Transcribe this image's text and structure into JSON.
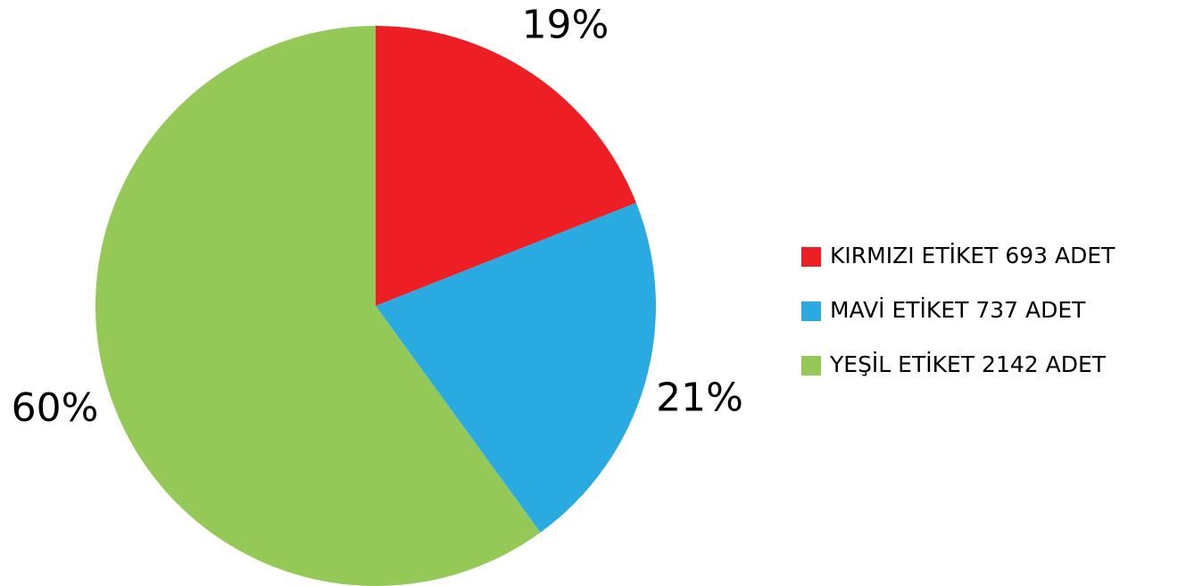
{
  "chart_data": {
    "type": "pie",
    "categories": [
      "KIRMIZI ETİKET 693 ADET",
      "MAVİ ETİKET 737 ADET",
      "YEŞİL ETİKET 2142 ADET"
    ],
    "values": [
      19,
      21,
      60
    ],
    "value_labels": [
      "19%",
      "21%",
      "60%"
    ],
    "colors": [
      "#ed1f24",
      "#29abe2",
      "#94c857"
    ],
    "legend": "right"
  }
}
